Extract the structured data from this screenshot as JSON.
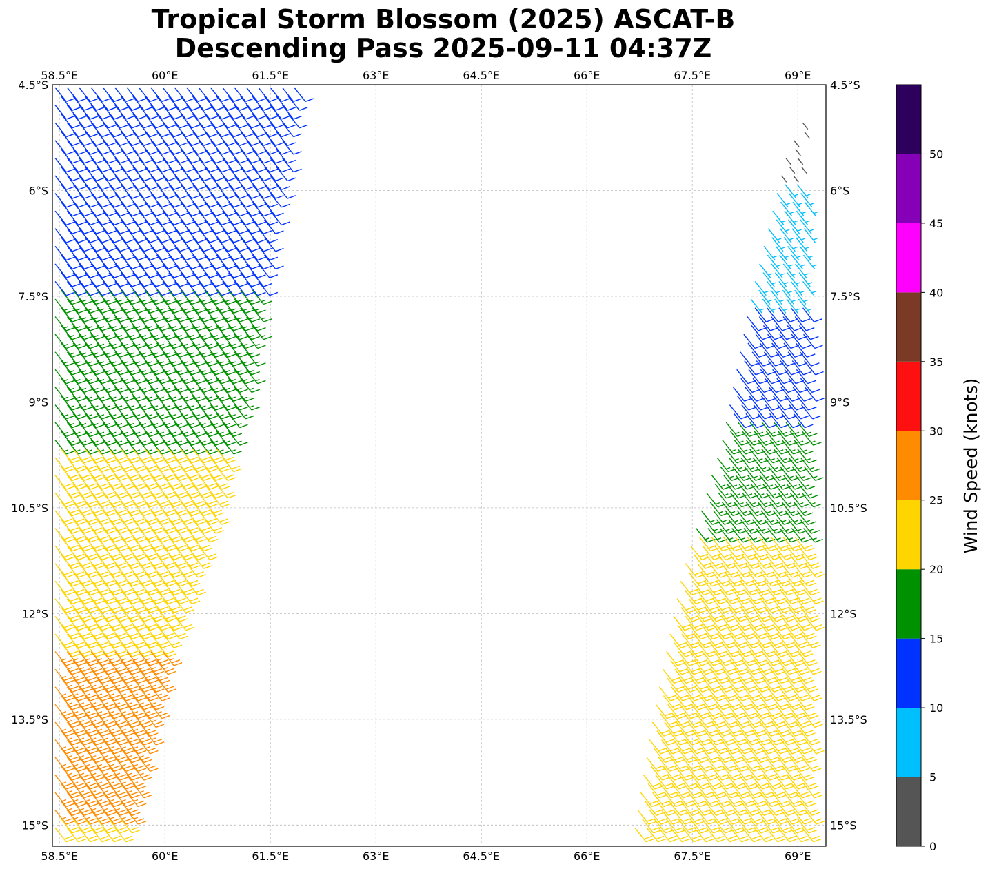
{
  "title_line1": "Tropical Storm Blossom (2025) ASCAT-B",
  "title_line2": "Descending Pass 2025-09-11 04:37Z",
  "map": {
    "lon_range": [
      58.4,
      69.4
    ],
    "lat_range": [
      -15.3,
      -4.5
    ],
    "gridlines": true,
    "lon_ticks": [
      {
        "value": 58.5,
        "label": "58.5°E"
      },
      {
        "value": 60.0,
        "label": "60°E"
      },
      {
        "value": 61.5,
        "label": "61.5°E"
      },
      {
        "value": 63.0,
        "label": "63°E"
      },
      {
        "value": 64.5,
        "label": "64.5°E"
      },
      {
        "value": 66.0,
        "label": "66°E"
      },
      {
        "value": 67.5,
        "label": "67.5°E"
      },
      {
        "value": 69.0,
        "label": "69°E"
      }
    ],
    "lat_ticks": [
      {
        "value": -4.5,
        "label": "4.5°S"
      },
      {
        "value": -6.0,
        "label": "6°S"
      },
      {
        "value": -7.5,
        "label": "7.5°S"
      },
      {
        "value": -9.0,
        "label": "9°S"
      },
      {
        "value": -10.5,
        "label": "10.5°S"
      },
      {
        "value": -12.0,
        "label": "12°S"
      },
      {
        "value": -13.5,
        "label": "13.5°S"
      },
      {
        "value": -15.0,
        "label": "15°S"
      }
    ],
    "swaths": [
      {
        "name": "west",
        "edges": [
          [
            -4.5,
            58.4,
            62.0
          ],
          [
            -6.5,
            58.4,
            61.6
          ],
          [
            -8.5,
            58.4,
            61.3
          ],
          [
            -10.5,
            58.4,
            60.8
          ],
          [
            -12.5,
            58.4,
            60.1
          ],
          [
            -14.5,
            58.4,
            59.7
          ],
          [
            -15.3,
            58.4,
            59.5
          ]
        ]
      },
      {
        "name": "east",
        "edges": [
          [
            -4.5,
            69.3,
            69.4
          ],
          [
            -5.5,
            68.8,
            69.4
          ],
          [
            -7.5,
            68.3,
            69.4
          ],
          [
            -9.5,
            67.9,
            69.4
          ],
          [
            -11.5,
            67.3,
            69.4
          ],
          [
            -13.5,
            66.9,
            69.4
          ],
          [
            -15.3,
            66.6,
            69.4
          ]
        ]
      }
    ],
    "wind_speed_regions": [
      {
        "swath": "west",
        "lat_max": -4.5,
        "lat_min": -7.4,
        "speed": 13
      },
      {
        "swath": "west",
        "lat_max": -7.4,
        "lat_min": -9.6,
        "speed": 17
      },
      {
        "swath": "west",
        "lat_max": -9.6,
        "lat_min": -12.5,
        "speed": 22
      },
      {
        "swath": "west",
        "lat_max": -12.5,
        "lat_min": -14.8,
        "speed": 27
      },
      {
        "swath": "west",
        "lat_max": -14.8,
        "lat_min": -15.3,
        "speed": 22
      },
      {
        "swath": "east",
        "lat_max": -4.5,
        "lat_min": -5.9,
        "speed": 4
      },
      {
        "swath": "east",
        "lat_max": -5.9,
        "lat_min": -7.6,
        "speed": 8
      },
      {
        "swath": "east",
        "lat_max": -7.6,
        "lat_min": -9.2,
        "speed": 13
      },
      {
        "swath": "east",
        "lat_max": -9.2,
        "lat_min": -10.8,
        "speed": 17
      },
      {
        "swath": "east",
        "lat_max": -10.8,
        "lat_min": -15.3,
        "speed": 22
      }
    ],
    "wind_direction": "southeasterly"
  },
  "colorbar": {
    "label": "Wind Speed (knots)",
    "ticks": [
      "0",
      "5",
      "10",
      "15",
      "20",
      "25",
      "30",
      "35",
      "40",
      "45",
      "50"
    ],
    "bins": [
      {
        "from": 0,
        "to": 5,
        "color": "#555555"
      },
      {
        "from": 5,
        "to": 10,
        "color": "#00bfff"
      },
      {
        "from": 10,
        "to": 15,
        "color": "#0033ff"
      },
      {
        "from": 15,
        "to": 20,
        "color": "#009100"
      },
      {
        "from": 20,
        "to": 25,
        "color": "#ffd500"
      },
      {
        "from": 25,
        "to": 30,
        "color": "#ff8c00"
      },
      {
        "from": 30,
        "to": 35,
        "color": "#ff1010"
      },
      {
        "from": 35,
        "to": 40,
        "color": "#7b3a26"
      },
      {
        "from": 40,
        "to": 45,
        "color": "#ff00ff"
      },
      {
        "from": 45,
        "to": 50,
        "color": "#8600b7"
      },
      {
        "from": 50,
        "to": 55,
        "color": "#2d005e"
      }
    ]
  }
}
